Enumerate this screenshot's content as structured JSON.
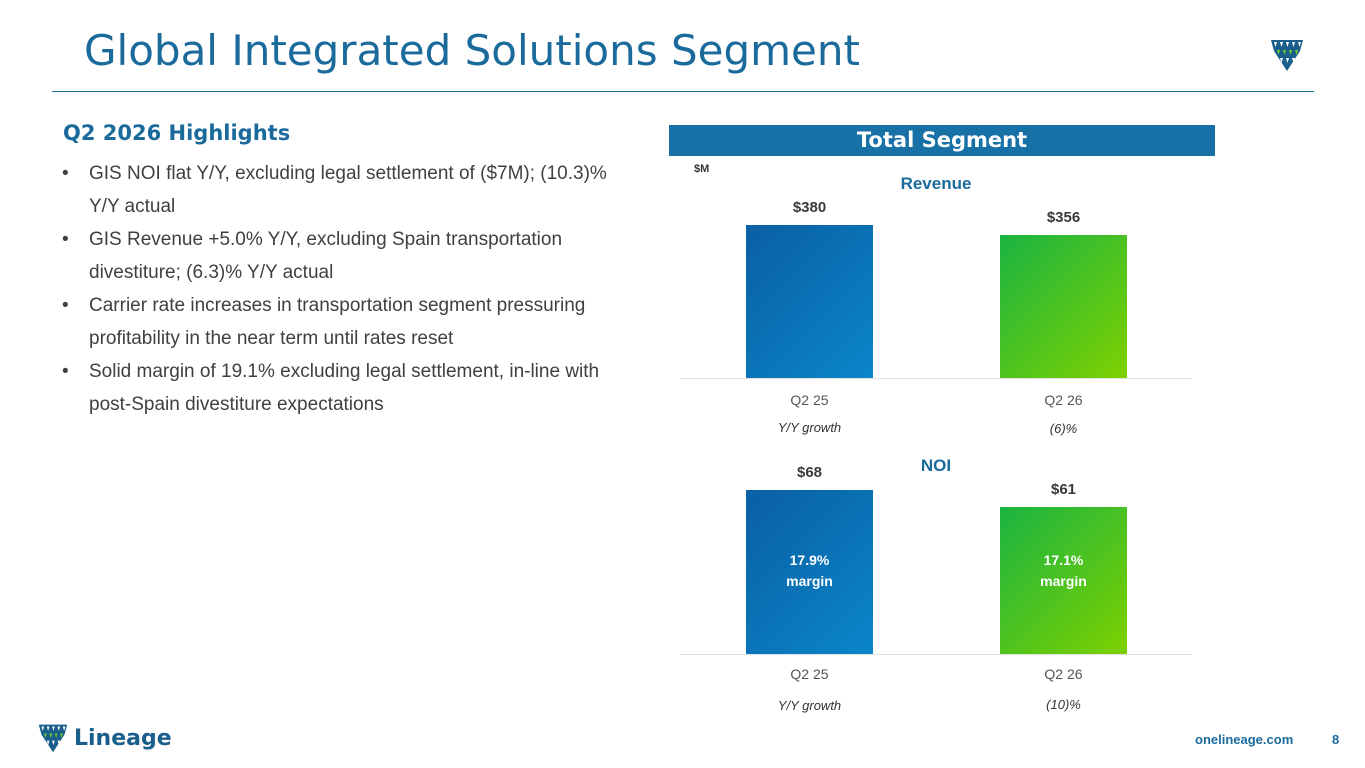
{
  "title": "Global Integrated Solutions Segment",
  "highlights": {
    "title": "Q2 2026 Highlights",
    "items": [
      "GIS NOI flat Y/Y, excluding legal settlement of ($7M); (10.3)% Y/Y actual",
      "GIS Revenue +5.0% Y/Y, excluding Spain transportation divestiture; (6.3)% Y/Y actual",
      "Carrier rate increases in transportation segment pressuring profitability in the near term until rates reset",
      "Solid margin of 19.1% excluding legal settlement, in-line with post-Spain divestiture expectations"
    ]
  },
  "segment_header": "Total Segment",
  "unit_label": "$M",
  "chart_data": [
    {
      "type": "bar",
      "title": "Revenue",
      "categories": [
        "Q2 25",
        "Q2 26"
      ],
      "values": [
        380,
        356
      ],
      "value_labels": [
        "$380",
        "$356"
      ],
      "colors": [
        "#0a74b9",
        "#3fc222"
      ],
      "growth_label": "Y/Y growth",
      "growth_value": "(6)%"
    },
    {
      "type": "bar",
      "title": "NOI",
      "categories": [
        "Q2 25",
        "Q2 26"
      ],
      "values": [
        68,
        61
      ],
      "value_labels": [
        "$68",
        "$61"
      ],
      "margins": [
        {
          "pct": "17.9%",
          "word": "margin"
        },
        {
          "pct": "17.1%",
          "word": "margin"
        }
      ],
      "colors": [
        "#0a74b9",
        "#3fc222"
      ],
      "growth_label": "Y/Y growth",
      "growth_value": "(10)%"
    }
  ],
  "footer": {
    "brand": "Lineage",
    "url": "onelineage.com",
    "page": "8"
  },
  "colors": {
    "brand_blue": "#1a6a9c",
    "bar_blue": "#0a74b9",
    "bar_green": "#3fc222"
  }
}
